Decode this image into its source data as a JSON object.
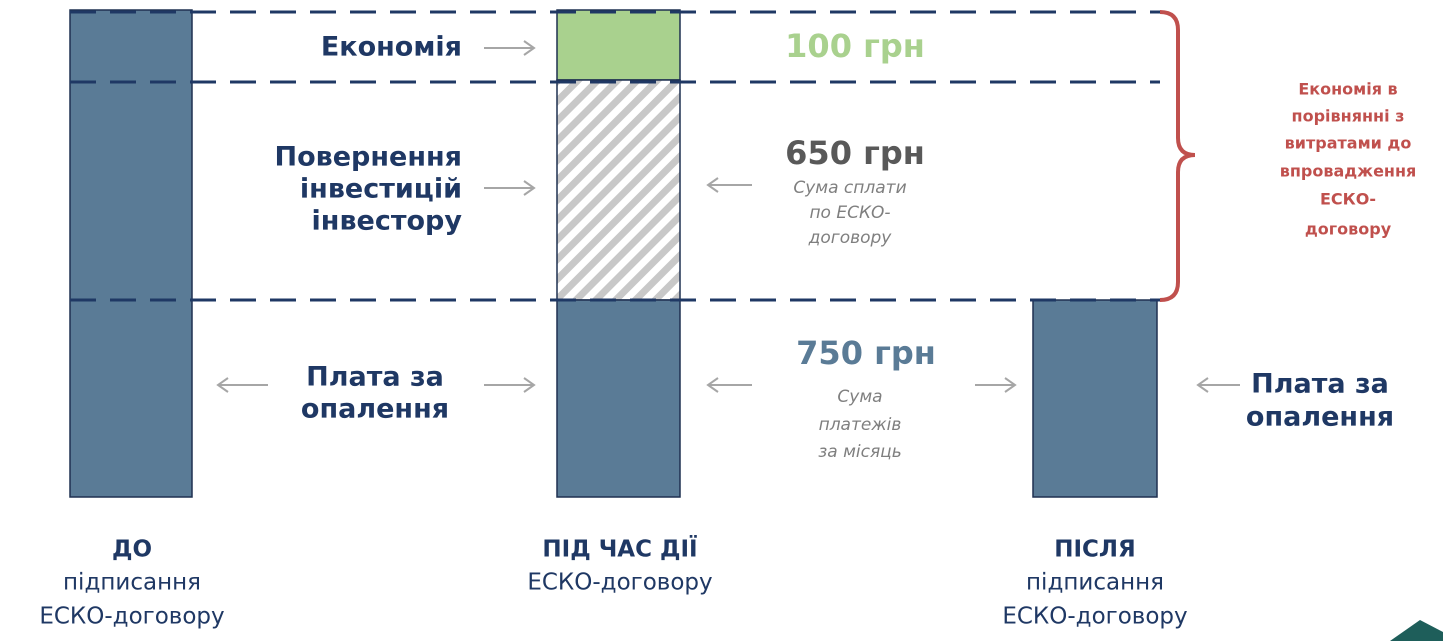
{
  "segments": {
    "savings": {
      "label": "Економія",
      "amount": "100 грн"
    },
    "investment": {
      "label": [
        "Повернення",
        "інвестицій",
        "інвестору"
      ],
      "amount": "650 грн",
      "note": [
        "Сума сплати",
        "по ЕСКО-",
        "договору"
      ]
    },
    "heating": {
      "label": [
        "Плата за",
        "опалення"
      ],
      "amount": "750 грн",
      "note": [
        "Сума",
        "платежів",
        "за місяць"
      ]
    }
  },
  "brace_note": [
    "Економія в",
    "порівнянні з",
    "витратами до",
    "впровадження",
    "ЕСКО-",
    "договору"
  ],
  "right_label": [
    "Плата за",
    "опалення"
  ],
  "columns": [
    {
      "title": "ДО",
      "subtitle": [
        "підписання",
        "ЕСКО-договору"
      ]
    },
    {
      "title": "ПІД ЧАС ДІЇ",
      "subtitle": [
        "ЕСКО-договору"
      ]
    },
    {
      "title": "ПІСЛЯ",
      "subtitle": [
        "підписання",
        "ЕСКО-договору"
      ]
    }
  ]
}
